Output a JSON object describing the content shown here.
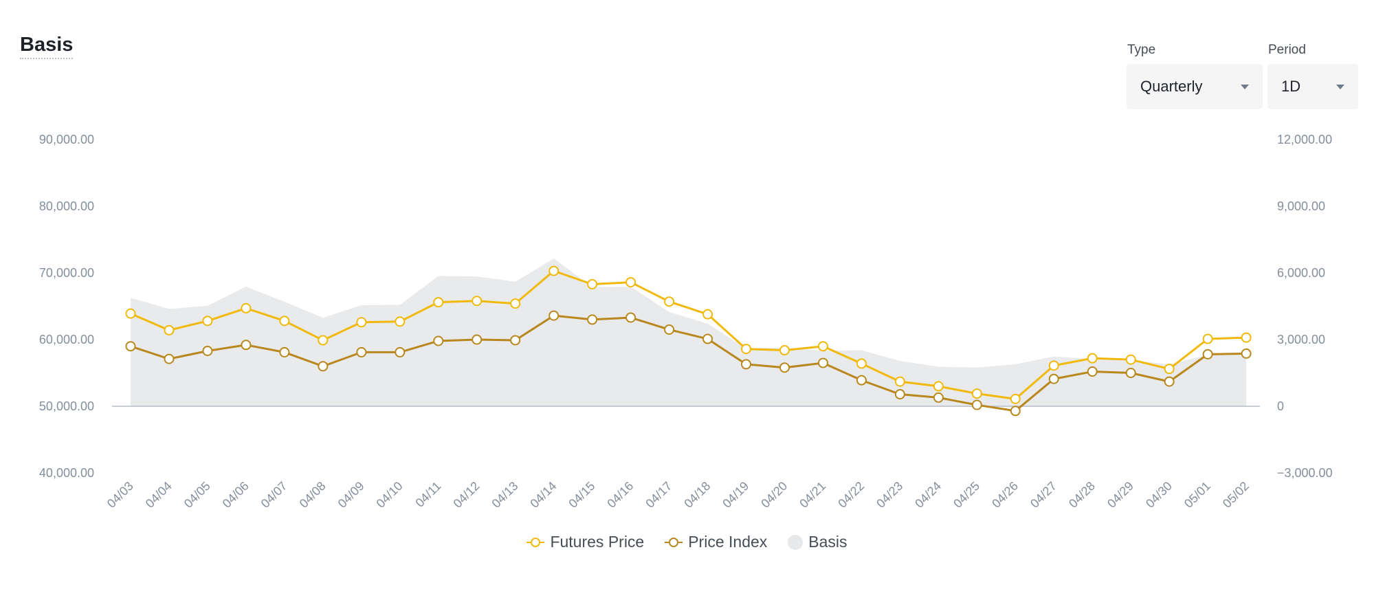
{
  "page": {
    "title": "Basis"
  },
  "controls": {
    "type_label": "Type",
    "type_value": "Quarterly",
    "period_label": "Period",
    "period_value": "1D"
  },
  "colors": {
    "futures": "#f0b90b",
    "index": "#b8871e",
    "basis": "#e9eaeb",
    "axis_text": "#848e9c",
    "zero_line": "#b7bdc6"
  },
  "chart_data": {
    "type": "line",
    "categories": [
      "04/03",
      "04/04",
      "04/05",
      "04/06",
      "04/07",
      "04/08",
      "04/09",
      "04/10",
      "04/11",
      "04/12",
      "04/13",
      "04/14",
      "04/15",
      "04/16",
      "04/17",
      "04/18",
      "04/19",
      "04/20",
      "04/21",
      "04/22",
      "04/23",
      "04/24",
      "04/25",
      "04/26",
      "04/27",
      "04/28",
      "04/29",
      "04/30",
      "05/01",
      "05/02"
    ],
    "series": [
      {
        "name": "Futures Price",
        "axis": "left",
        "color": "#f0b90b",
        "values": [
          63900,
          61400,
          62800,
          64700,
          62800,
          59900,
          62600,
          62700,
          65600,
          65800,
          65400,
          70300,
          68300,
          68600,
          65700,
          63800,
          58600,
          58400,
          59000,
          56400,
          53700,
          53000,
          51900,
          51100,
          56100,
          57200,
          57000,
          55600,
          60100,
          60300
        ]
      },
      {
        "name": "Price Index",
        "axis": "left",
        "color": "#b8871e",
        "values": [
          59000,
          57100,
          58300,
          59200,
          58100,
          56000,
          58100,
          58100,
          59800,
          60000,
          59900,
          63600,
          63000,
          63300,
          61500,
          60100,
          56300,
          55800,
          56500,
          53900,
          51800,
          51300,
          50200,
          49300,
          54100,
          55200,
          55000,
          53700,
          57800,
          57900
        ]
      },
      {
        "name": "Basis",
        "axis": "right",
        "type": "area",
        "color": "#e9eaeb",
        "values": [
          4880,
          4380,
          4520,
          5380,
          4700,
          3980,
          4550,
          4560,
          5860,
          5840,
          5600,
          6650,
          5360,
          5380,
          4240,
          3720,
          2610,
          2640,
          2500,
          2520,
          2040,
          1780,
          1740,
          1890,
          2240,
          2120,
          2080,
          1880,
          2320,
          2400
        ]
      }
    ],
    "y_left": {
      "ylim": [
        40000,
        90000
      ],
      "ticks": [
        "90,000.00",
        "80,000.00",
        "70,000.00",
        "60,000.00",
        "50,000.00",
        "40,000.00"
      ]
    },
    "y_right": {
      "ylim": [
        -3000,
        12000
      ],
      "ticks": [
        "12,000.00",
        "9,000.00",
        "6,000.00",
        "3,000.00",
        "0",
        "−3,000.00"
      ]
    },
    "grid": false,
    "legend_position": "bottom-center"
  }
}
